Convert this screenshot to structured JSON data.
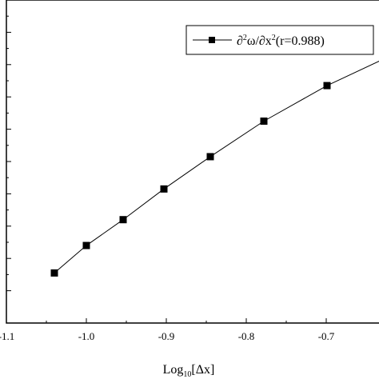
{
  "chart_data": {
    "type": "line",
    "xlabel": "Log",
    "xlabel_sub": "10",
    "xlabel_suffix": "[Δx]",
    "ylabel": "",
    "xlim": [
      -1.1,
      -0.63
    ],
    "ylim": [
      0,
      10
    ],
    "grid": false,
    "x_ticks": [
      -1.1,
      -1.0,
      -0.9,
      -0.8,
      -0.7
    ],
    "x_tick_labels": [
      "-1.1",
      "-1.0",
      "-0.9",
      "-0.8",
      "-0.7"
    ],
    "y_ticks": [
      1,
      2,
      3,
      4,
      5,
      6,
      7,
      8,
      9
    ],
    "legend": {
      "position": "top-right",
      "marker": "square"
    },
    "series": [
      {
        "name": "∂²ω/∂x²(r=0.988)",
        "marker": "square",
        "color": "#000000",
        "x": [
          -1.04,
          -1.0,
          -0.954,
          -0.903,
          -0.845,
          -0.778,
          -0.699
        ],
        "y": [
          1.55,
          2.4,
          3.2,
          4.15,
          5.15,
          6.25,
          7.35
        ]
      }
    ],
    "trend_extension": {
      "x": [
        -0.699,
        -0.63
      ],
      "y": [
        7.35,
        8.15
      ]
    }
  }
}
